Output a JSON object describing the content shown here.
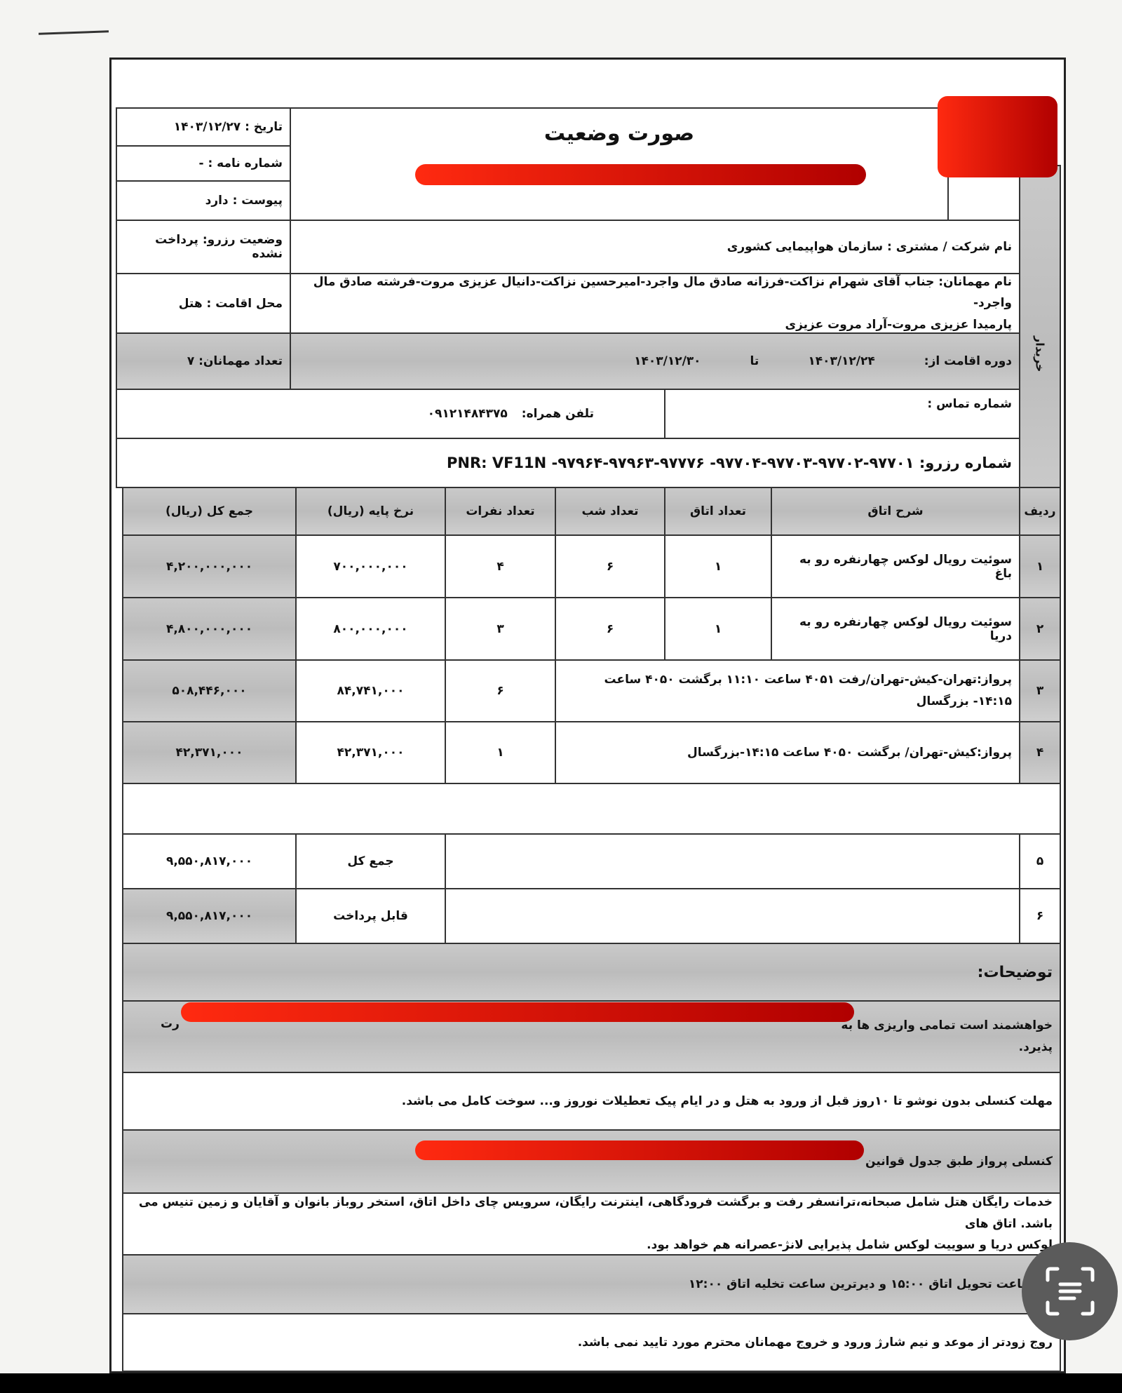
{
  "header": {
    "title": "صورت وضعیت",
    "date": "تاریخ : ۱۴۰۳/۱۲/۲۷",
    "letter_no": "شماره نامه : -",
    "attachment": "پیوست : دارد"
  },
  "side_label": "خریدار",
  "customer": {
    "company": "نام شرکت / مشتری : سازمان هواپیمایی کشوری",
    "reservation_status": "وضعیت رزرو: پرداخت نشده",
    "guests_line1": "نام مهمانان: جناب آقای شهرام نزاکت-فرزانه صادق مال واجرد-امیرحسین نزاکت-دانیال عزیزی مروت-فرشته صادق مال واجرد-",
    "guests_line2": "پارمیدا عزیزی مروت-آراد مروت عزیزی",
    "residence": "محل اقامت : هتل",
    "stay_label": "دوره اقامت از:",
    "stay_from": "۱۴۰۳/۱۲/۲۴",
    "to_label": "تا",
    "stay_to": "۱۴۰۳/۱۲/۳۰",
    "guest_count": "تعداد مهمانان: ۷",
    "contact_label": "شماره تماس :",
    "mobile_label": "تلفن همراه:",
    "mobile": "۰۹۱۲۱۴۸۴۳۷۵",
    "reservation_no": "شماره رزرو: ۹۷۷۰۱-۹۷۷۰۲-۹۷۷۰۳-۹۷۷۰۴- ۹۷۷۷۶-۹۷۹۶۳-۹۷۹۶۴- PNR: VF11N"
  },
  "table": {
    "headers": [
      "ردیف",
      "شرح اتاق",
      "تعداد اتاق",
      "تعداد شب",
      "تعداد نفرات",
      "نرخ پایه (ریال)",
      "جمع کل (ریال)"
    ],
    "rows": [
      {
        "no": "۱",
        "desc": "سوئیت رویال لوکس چهارنفره رو به باغ",
        "rooms": "۱",
        "nights": "۶",
        "persons": "۴",
        "rate": "۷۰۰,۰۰۰,۰۰۰",
        "total": "۴,۲۰۰,۰۰۰,۰۰۰"
      },
      {
        "no": "۲",
        "desc": "سوئیت رویال لوکس چهارنفره رو به دریا",
        "rooms": "۱",
        "nights": "۶",
        "persons": "۳",
        "rate": "۸۰۰,۰۰۰,۰۰۰",
        "total": "۴,۸۰۰,۰۰۰,۰۰۰"
      },
      {
        "no": "۳",
        "desc": "پرواز:تهران-کیش-تهران/رفت ۴۰۵۱ ساعت ۱۱:۱۰ برگشت ۴۰۵۰ ساعت ۱۴:۱۵- بزرگسال",
        "persons": "۶",
        "rate": "۸۴,۷۴۱,۰۰۰",
        "total": "۵۰۸,۴۴۶,۰۰۰"
      },
      {
        "no": "۴",
        "desc": "پرواز:کیش-تهران/ برگشت ۴۰۵۰ ساعت ۱۴:۱۵-بزرگسال",
        "persons": "۱",
        "rate": "۴۲,۳۷۱,۰۰۰",
        "total": "۴۲,۳۷۱,۰۰۰"
      }
    ]
  },
  "totals": {
    "row5_no": "۵",
    "sum_label": "جمع کل",
    "sum": "۹,۵۵۰,۸۱۷,۰۰۰",
    "row6_no": "۶",
    "payable_label": "قابل پرداخت",
    "payable": "۹,۵۵۰,۸۱۷,۰۰۰"
  },
  "notes": {
    "heading": "توضیحات:",
    "n1_start": "خواهشمند است تمامی واریزی ها به",
    "n1_end": "رت",
    "n1_line2": "پذیرد.",
    "n2": "مهلت کنسلی بدون نوشو تا ۱۰روز قبل از ورود به هتل و در ایام پیک تعطیلات نوروز و... سوخت کامل می باشد.",
    "n3": "کنسلی پرواز طبق جدول قوانین",
    "n4_line1": "خدمات رایگان هتل شامل صبحانه،ترانسفر رفت و برگشت فرودگاهی، اینترنت رایگان، سرویس چای داخل اتاق، استخر روباز بانوان و آقایان و زمین تنیس می باشد. اتاق های",
    "n4_line2": "لوکس دریا و سوییت لوکس شامل پذیرایی لانژ-عصرانه هم خواهد بود.",
    "n5": "ین ساعت تحویل اتاق ۱۵:۰۰ و دیرترین ساعت تخلیه اتاق ۱۲:۰۰",
    "n6": "روج زودتر از موعد و نیم شارژ ورود و خروج مهمانان محترم مورد تایید نمی باشد."
  },
  "colors": {
    "redaction": "#e0140a",
    "gray_band": "#c4c4c4"
  },
  "icons": {
    "scan": "scan-text-icon"
  }
}
